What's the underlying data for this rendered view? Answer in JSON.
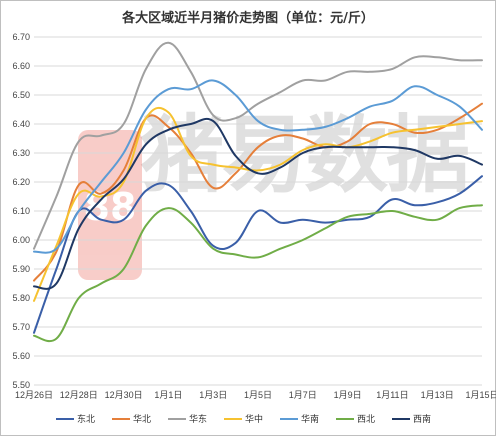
{
  "chart_data": {
    "type": "line",
    "title": "各大区域近半月猪价走势图（单位：元/斤）",
    "xlabel": "",
    "ylabel": "",
    "ylim": [
      5.5,
      6.7
    ],
    "yticks": [
      "5.50",
      "5.60",
      "5.70",
      "5.80",
      "5.90",
      "6.00",
      "6.10",
      "6.20",
      "6.30",
      "6.40",
      "6.50",
      "6.60",
      "6.70"
    ],
    "categories": [
      "12月26日",
      "12月27日",
      "12月28日",
      "12月29日",
      "12月30日",
      "12月31日",
      "1月1日",
      "1月2日",
      "1月3日",
      "1月4日",
      "1月5日",
      "1月6日",
      "1月7日",
      "1月8日",
      "1月9日",
      "1月10日",
      "1月11日",
      "1月12日",
      "1月13日",
      "1月14日",
      "1月15日"
    ],
    "xtick_labels": [
      "12月26日",
      "12月28日",
      "12月30日",
      "1月1日",
      "1月3日",
      "1月5日",
      "1月7日",
      "1月9日",
      "1月11日",
      "1月13日",
      "1月15日"
    ],
    "grid": true,
    "legend_position": "bottom",
    "series": [
      {
        "name": "东北",
        "color": "#3a5fa8",
        "values": [
          5.68,
          5.9,
          6.1,
          6.07,
          6.07,
          6.17,
          6.19,
          6.1,
          5.98,
          5.99,
          6.1,
          6.06,
          6.07,
          6.06,
          6.07,
          6.08,
          6.14,
          6.12,
          6.13,
          6.16,
          6.22
        ]
      },
      {
        "name": "华北",
        "color": "#e57f3a",
        "values": [
          5.86,
          5.96,
          6.19,
          6.16,
          6.24,
          6.42,
          6.39,
          6.3,
          6.18,
          6.23,
          6.32,
          6.36,
          6.35,
          6.32,
          6.34,
          6.4,
          6.4,
          6.37,
          6.38,
          6.42,
          6.47
        ]
      },
      {
        "name": "华东",
        "color": "#a0a0a0",
        "values": [
          5.97,
          6.15,
          6.34,
          6.36,
          6.4,
          6.59,
          6.68,
          6.58,
          6.43,
          6.42,
          6.47,
          6.51,
          6.55,
          6.55,
          6.58,
          6.58,
          6.59,
          6.63,
          6.63,
          6.62,
          6.62
        ]
      },
      {
        "name": "华中",
        "color": "#f6c230",
        "values": [
          5.79,
          5.98,
          6.16,
          6.15,
          6.2,
          6.42,
          6.44,
          6.29,
          6.26,
          6.25,
          6.24,
          6.26,
          6.31,
          6.33,
          6.32,
          6.34,
          6.37,
          6.38,
          6.39,
          6.4,
          6.41
        ]
      },
      {
        "name": "华南",
        "color": "#5b9bd5",
        "values": [
          5.96,
          5.97,
          6.1,
          6.2,
          6.3,
          6.45,
          6.52,
          6.52,
          6.55,
          6.5,
          6.41,
          6.38,
          6.38,
          6.39,
          6.42,
          6.46,
          6.48,
          6.53,
          6.5,
          6.46,
          6.38
        ]
      },
      {
        "name": "西北",
        "color": "#70ad47",
        "values": [
          5.67,
          5.66,
          5.8,
          5.85,
          5.9,
          6.05,
          6.11,
          6.06,
          5.97,
          5.95,
          5.94,
          5.97,
          6.0,
          6.04,
          6.08,
          6.09,
          6.1,
          6.08,
          6.07,
          6.11,
          6.12
        ]
      },
      {
        "name": "西南",
        "color": "#1f3864",
        "values": [
          5.84,
          5.85,
          6.04,
          6.14,
          6.21,
          6.33,
          6.38,
          6.4,
          6.41,
          6.29,
          6.23,
          6.25,
          6.3,
          6.32,
          6.32,
          6.32,
          6.32,
          6.31,
          6.28,
          6.29,
          6.26
        ]
      }
    ]
  },
  "watermark": {
    "text": "猪易数据",
    "logo_text": "88"
  }
}
